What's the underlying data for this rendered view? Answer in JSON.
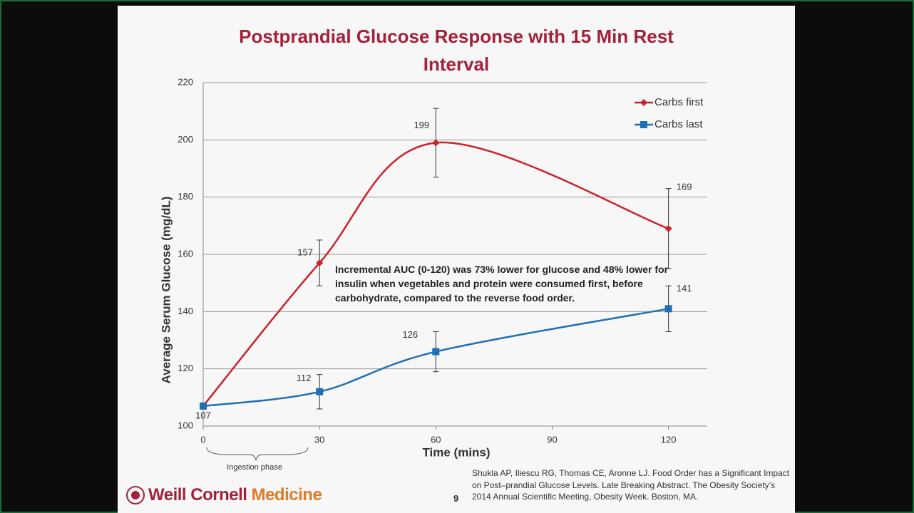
{
  "chart_data": {
    "type": "line",
    "title": "Postprandial Glucose Response with 15 Min Rest Interval",
    "x_label": "Time (mins)",
    "y_label": "Average Serum Glucose (mg/dL)",
    "x": [
      0,
      30,
      60,
      120
    ],
    "series": [
      {
        "name": "Carbs first",
        "color": "#cc2229",
        "marker": "diamond",
        "values": [
          107,
          157,
          199,
          169
        ],
        "errors": [
          null,
          8,
          12,
          14
        ]
      },
      {
        "name": "Carbs last",
        "color": "#1f6fb4",
        "marker": "square",
        "values": [
          107,
          112,
          126,
          141
        ],
        "errors": [
          null,
          6,
          7,
          8
        ]
      }
    ],
    "xlim": [
      0,
      130
    ],
    "xticks": [
      0,
      30,
      60,
      90,
      120
    ],
    "ylim": [
      100,
      220
    ],
    "yticks": [
      100,
      120,
      140,
      160,
      180,
      200,
      220
    ],
    "grid": true,
    "legend": "upper right",
    "annotations": [
      "Incremental AUC (0-120) was 73% lower for glucose and 48% lower for insulin when vegetables and protein were consumed first, before carbohydrate, compared to the reverse food order.",
      "Ingestion phase"
    ]
  },
  "footer": {
    "logo_primary": "Weill Cornell",
    "logo_secondary": "Medicine",
    "page_number": "9",
    "citation": "Shukla AP, Iliescu RG, Thomas CE, Aronne LJ. Food Order has a Significant Impact on Post–prandial Glucose Levels. Late Breaking Abstract. The Obesity Society’s 2014 Annual Scientific Meeting, Obesity Week. Boston, MA."
  }
}
